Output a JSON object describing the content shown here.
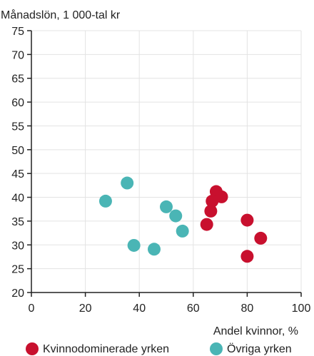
{
  "chart_data": {
    "type": "scatter",
    "ylabel": "Månadslön, 1 000-tal kr",
    "xlabel": "Andel kvinnor, %",
    "xlim": [
      0,
      100
    ],
    "ylim": [
      20,
      75
    ],
    "x_ticks": [
      0,
      20,
      40,
      60,
      80,
      100
    ],
    "y_ticks": [
      20,
      25,
      30,
      35,
      40,
      45,
      50,
      55,
      60,
      65,
      70,
      75
    ],
    "grid": true,
    "legend_position": "bottom",
    "series": [
      {
        "name": "Kvinnodominerade yrken",
        "color": "#c8102e",
        "points": [
          {
            "x": 68.5,
            "y": 41.2
          },
          {
            "x": 70.5,
            "y": 40.1
          },
          {
            "x": 67,
            "y": 39.2
          },
          {
            "x": 66.5,
            "y": 37.1
          },
          {
            "x": 65,
            "y": 34.3
          },
          {
            "x": 80,
            "y": 35.2
          },
          {
            "x": 85,
            "y": 31.4
          },
          {
            "x": 80,
            "y": 27.6
          }
        ]
      },
      {
        "name": "Övriga yrken",
        "color": "#4ab5b5",
        "points": [
          {
            "x": 35.5,
            "y": 43.0
          },
          {
            "x": 27.5,
            "y": 39.2
          },
          {
            "x": 50,
            "y": 38.0
          },
          {
            "x": 53.5,
            "y": 36.1
          },
          {
            "x": 56,
            "y": 32.9
          },
          {
            "x": 38,
            "y": 29.9
          },
          {
            "x": 45.5,
            "y": 29.1
          }
        ]
      }
    ]
  }
}
